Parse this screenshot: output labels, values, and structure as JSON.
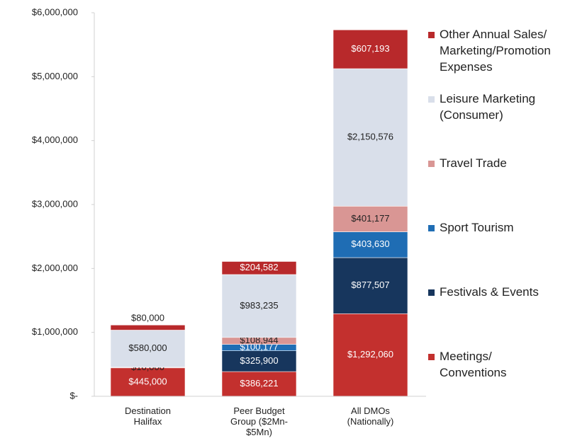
{
  "chart_data": {
    "type": "stacked_bar",
    "categories": [
      "Destination Halifax",
      "Peer Budget Group ($2Mn-$5Mn)",
      "All DMOs (Nationally)"
    ],
    "series": [
      {
        "name": "Meetings/Conventions",
        "color": "#c3302e",
        "values": [
          445000,
          386221,
          1292060
        ],
        "value_labels": [
          "$445,000",
          "$386,221",
          "$1,292,060"
        ]
      },
      {
        "name": "Festivals & Events",
        "color": "#17365d",
        "values": [
          null,
          325900,
          877507
        ],
        "value_labels": [
          null,
          "$325,900",
          "$877,507"
        ]
      },
      {
        "name": "Sport Tourism",
        "color": "#1f6db4",
        "values": [
          null,
          100177,
          403630
        ],
        "value_labels": [
          null,
          "$100,177",
          "$403,630"
        ]
      },
      {
        "name": "Travel Trade",
        "color": "#d99694",
        "values": [
          10000,
          108944,
          401177
        ],
        "value_labels": [
          "$10,000",
          "$108,944",
          "$401,177"
        ]
      },
      {
        "name": "Leisure Marketing (Consumer)",
        "color": "#d9dfea",
        "values": [
          580000,
          983235,
          2150576
        ],
        "value_labels": [
          "$580,000",
          "$983,235",
          "$2,150,576"
        ]
      },
      {
        "name": "Other Annual Sales/Marketing/Promotion Expenses",
        "color": "#b8292b",
        "values": [
          80000,
          204582,
          607193
        ],
        "value_labels": [
          "$80,000",
          "$204,582",
          "$607,193"
        ]
      }
    ],
    "ylim": [
      0,
      6000000
    ],
    "yticks": [
      {
        "value": 0,
        "label": "$-"
      },
      {
        "value": 1000000,
        "label": "$1,000,000"
      },
      {
        "value": 2000000,
        "label": "$2,000,000"
      },
      {
        "value": 3000000,
        "label": "$3,000,000"
      },
      {
        "value": 4000000,
        "label": "$4,000,000"
      },
      {
        "value": 5000000,
        "label": "$5,000,000"
      },
      {
        "value": 6000000,
        "label": "$6,000,000"
      }
    ],
    "grid": false,
    "legend": "right"
  }
}
